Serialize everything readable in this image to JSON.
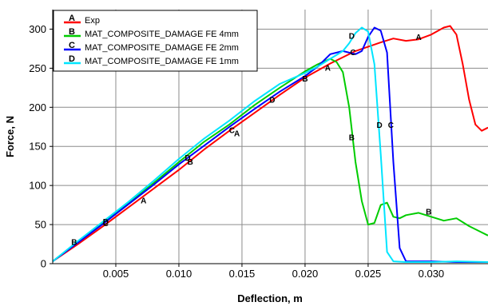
{
  "chart_data": {
    "type": "line",
    "xlabel": "Deflection, m",
    "ylabel": "Force, N",
    "xlim": [
      0,
      0.0345
    ],
    "ylim": [
      0,
      325
    ],
    "xticks": [
      0.005,
      0.01,
      0.015,
      0.02,
      0.025,
      0.03
    ],
    "xtick_labels": [
      "0.005",
      "0.010",
      "0.015",
      "0.020",
      "0.025",
      "0.030"
    ],
    "yticks": [
      0,
      50,
      100,
      150,
      200,
      250,
      300
    ],
    "ytick_labels": [
      "0",
      "50",
      "100",
      "150",
      "200",
      "250",
      "300"
    ],
    "grid": true,
    "legend_position": "top-left",
    "series": [
      {
        "letter": "A",
        "name": "Exp",
        "color": "#ff0000",
        "x": [
          0.0,
          0.002,
          0.004,
          0.006,
          0.008,
          0.01,
          0.012,
          0.014,
          0.016,
          0.018,
          0.02,
          0.022,
          0.024,
          0.026,
          0.027,
          0.028,
          0.029,
          0.03,
          0.031,
          0.0315,
          0.032,
          0.0325,
          0.033,
          0.0335,
          0.034,
          0.0345
        ],
        "y": [
          3,
          25,
          48,
          72,
          96,
          120,
          146,
          170,
          193,
          216,
          238,
          256,
          272,
          283,
          288,
          285,
          287,
          293,
          302,
          304,
          293,
          255,
          210,
          178,
          170,
          174
        ],
        "marker_x": [
          0.0072,
          0.0146,
          0.0218,
          0.029
        ],
        "marker_y": [
          81,
          167,
          251,
          290
        ]
      },
      {
        "letter": "B",
        "name": "MAT_COMPOSITE_DAMAGE FE 4mm",
        "color": "#00cc00",
        "x": [
          0.0,
          0.002,
          0.004,
          0.006,
          0.008,
          0.01,
          0.012,
          0.014,
          0.016,
          0.018,
          0.02,
          0.021,
          0.022,
          0.0225,
          0.023,
          0.0235,
          0.024,
          0.0245,
          0.025,
          0.0255,
          0.026,
          0.0265,
          0.027,
          0.0275,
          0.028,
          0.029,
          0.03,
          0.031,
          0.032,
          0.033,
          0.034,
          0.0345
        ],
        "y": [
          3,
          28,
          52,
          77,
          103,
          130,
          156,
          178,
          203,
          225,
          246,
          255,
          262,
          258,
          245,
          200,
          130,
          80,
          50,
          52,
          75,
          78,
          60,
          58,
          62,
          65,
          60,
          55,
          58,
          48,
          40,
          36
        ],
        "marker_x": [
          0.0017,
          0.0109,
          0.02,
          0.0237,
          0.0298
        ],
        "marker_y": [
          28,
          131,
          237,
          162,
          67
        ]
      },
      {
        "letter": "C",
        "name": "MAT_COMPOSITE_DAMAGE FE 2mm",
        "color": "#0000ff",
        "x": [
          0.0,
          0.002,
          0.004,
          0.006,
          0.008,
          0.01,
          0.012,
          0.014,
          0.016,
          0.018,
          0.02,
          0.021,
          0.022,
          0.023,
          0.024,
          0.0245,
          0.025,
          0.0255,
          0.026,
          0.0265,
          0.027,
          0.0275,
          0.028,
          0.03,
          0.032,
          0.0345
        ],
        "y": [
          3,
          27,
          51,
          76,
          101,
          127,
          151,
          175,
          198,
          220,
          240,
          252,
          268,
          272,
          268,
          272,
          290,
          302,
          298,
          270,
          130,
          20,
          3,
          3,
          2,
          2
        ],
        "marker_x": [
          0.0042,
          0.0142,
          0.0238,
          0.0268
        ],
        "marker_y": [
          52,
          171,
          271,
          178
        ]
      },
      {
        "letter": "D",
        "name": "MAT_COMPOSITE_DAMAGE FE 1mm",
        "color": "#00e5ff",
        "x": [
          0.0,
          0.002,
          0.004,
          0.006,
          0.008,
          0.01,
          0.012,
          0.014,
          0.016,
          0.018,
          0.02,
          0.021,
          0.022,
          0.023,
          0.0235,
          0.024,
          0.0245,
          0.025,
          0.0255,
          0.026,
          0.0265,
          0.027,
          0.028,
          0.03,
          0.032,
          0.0345
        ],
        "y": [
          3,
          29,
          54,
          79,
          106,
          134,
          160,
          183,
          208,
          230,
          244,
          252,
          262,
          272,
          282,
          295,
          302,
          297,
          255,
          140,
          15,
          3,
          2,
          2,
          3,
          2
        ],
        "marker_x": [
          0.0042,
          0.0107,
          0.0174,
          0.0237,
          0.0259
        ],
        "marker_y": [
          54,
          136,
          210,
          292,
          178
        ]
      }
    ]
  }
}
